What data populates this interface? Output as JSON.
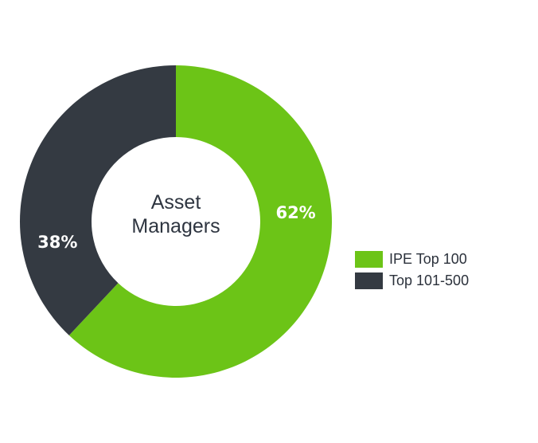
{
  "chart_data": {
    "type": "pie",
    "variant": "donut",
    "center_text": [
      "Asset",
      "Managers"
    ],
    "categories": [
      "IPE Top 100",
      "Top 101-500"
    ],
    "values": [
      62,
      38
    ],
    "data_labels": [
      "62%",
      "38%"
    ],
    "colors": [
      "#6cc417",
      "#343a42"
    ],
    "legend_position": "right"
  },
  "legend": {
    "items": [
      {
        "label": "IPE Top 100",
        "color": "#6cc417"
      },
      {
        "label": "Top 101-500",
        "color": "#343a42"
      }
    ]
  }
}
